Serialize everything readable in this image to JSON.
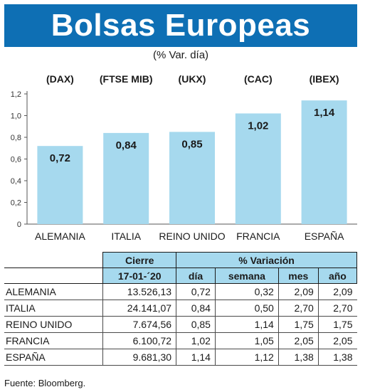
{
  "header": {
    "title": "Bolsas Europeas",
    "subtitle": "(% Var. día)"
  },
  "colors": {
    "header_bg": "#0e6fb4",
    "bar": "#a6d9ee",
    "table_header": "#a6d9ee"
  },
  "chart_data": {
    "type": "bar",
    "categories": [
      "ALEMANIA",
      "ITALIA",
      "REINO UNIDO",
      "FRANCIA",
      "ESPAÑA"
    ],
    "index_labels": [
      "(DAX)",
      "(FTSE MIB)",
      "(UKX)",
      "(CAC)",
      "(IBEX)"
    ],
    "values": [
      0.72,
      0.84,
      0.85,
      1.02,
      1.14
    ],
    "value_labels": [
      "0,72",
      "0,84",
      "0,85",
      "1,02",
      "1,14"
    ],
    "ylim": [
      0,
      1.2
    ],
    "y_ticks": [
      0,
      0.2,
      0.4,
      0.6,
      0.8,
      1.0,
      1.2
    ],
    "y_tick_labels": [
      "0",
      "0,2",
      "0,4",
      "0,6",
      "0,8",
      "1,0",
      "1,2"
    ],
    "grid": false
  },
  "table": {
    "group_headers": [
      "Cierre",
      "% Variación"
    ],
    "sub_headers": [
      "17-01-´20",
      "día",
      "semana",
      "mes",
      "año"
    ],
    "rows": [
      [
        "ALEMANIA",
        "13.526,13",
        "0,72",
        "0,32",
        "2,09",
        "2,09"
      ],
      [
        "ITALIA",
        "24.141,07",
        "0,84",
        "0,50",
        "2,70",
        "2,70"
      ],
      [
        "REINO UNIDO",
        "7.674,56",
        "0,85",
        "1,14",
        "1,75",
        "1,75"
      ],
      [
        "FRANCIA",
        "6.100,72",
        "1,02",
        "1,05",
        "2,05",
        "2,05"
      ],
      [
        "ESPAÑA",
        "9.681,30",
        "1,14",
        "1,12",
        "1,38",
        "1,38"
      ]
    ]
  },
  "footer": {
    "source": "Fuente: Bloomberg."
  }
}
